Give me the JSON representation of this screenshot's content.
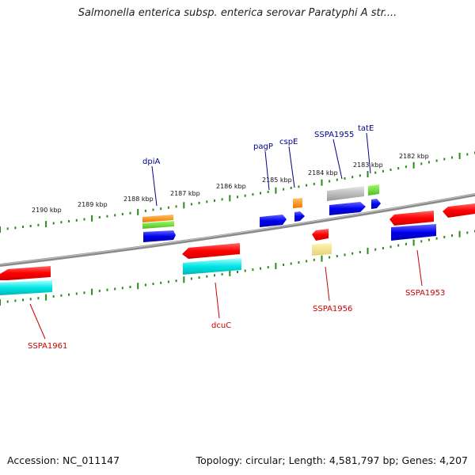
{
  "title": "Salmonella enterica subsp. enterica serovar Paratyphi A str....",
  "footer": {
    "accession": "Accession: NC_011147",
    "topology": "Topology: circular; Length: 4,581,797 bp; Genes: 4,207"
  },
  "colors": {
    "backbone": "#8a8a8a",
    "tick": "#2a8a1a",
    "label_top": "#00008b",
    "label_bottom": "#cc0000",
    "ruler_text": "#111111"
  },
  "ruler_labels": [
    "2190 kbp",
    "2189 kbp",
    "2188 kbp",
    "2187 kbp",
    "2186 kbp",
    "2185 kbp",
    "2184 kbp",
    "2183 kbp",
    "2182 kbp"
  ],
  "genes_top": [
    "dpiA",
    "pagP",
    "cspE",
    "SSPA1955",
    "tatE"
  ],
  "genes_bottom": [
    "SSPA1961",
    "dcuC",
    "SSPA1956",
    "SSPA1953"
  ]
}
